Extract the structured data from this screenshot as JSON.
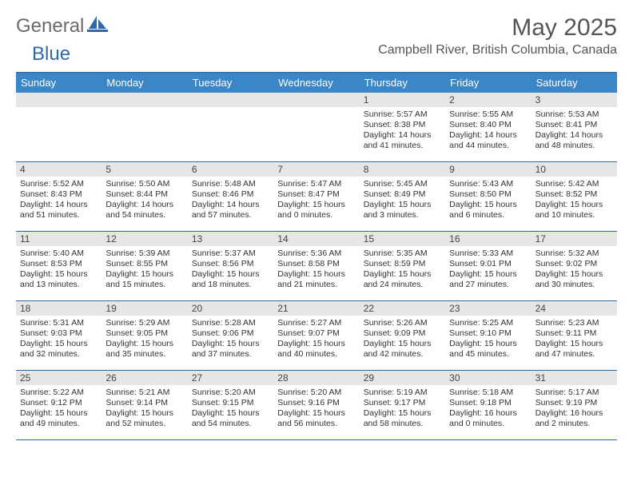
{
  "logo": {
    "text1": "General",
    "text2": "Blue"
  },
  "title": "May 2025",
  "subtitle": "Campbell River, British Columbia, Canada",
  "colors": {
    "header_bg": "#3b86c7",
    "border": "#2e6aa8",
    "daynum_bg": "#e6e6e6",
    "text_dark": "#444444",
    "body_text": "#333333"
  },
  "dayHeaders": [
    "Sunday",
    "Monday",
    "Tuesday",
    "Wednesday",
    "Thursday",
    "Friday",
    "Saturday"
  ],
  "weeks": [
    [
      {
        "n": "",
        "sunrise": "",
        "sunset": "",
        "daylight": ""
      },
      {
        "n": "",
        "sunrise": "",
        "sunset": "",
        "daylight": ""
      },
      {
        "n": "",
        "sunrise": "",
        "sunset": "",
        "daylight": ""
      },
      {
        "n": "",
        "sunrise": "",
        "sunset": "",
        "daylight": ""
      },
      {
        "n": "1",
        "sunrise": "Sunrise: 5:57 AM",
        "sunset": "Sunset: 8:38 PM",
        "daylight": "Daylight: 14 hours and 41 minutes."
      },
      {
        "n": "2",
        "sunrise": "Sunrise: 5:55 AM",
        "sunset": "Sunset: 8:40 PM",
        "daylight": "Daylight: 14 hours and 44 minutes."
      },
      {
        "n": "3",
        "sunrise": "Sunrise: 5:53 AM",
        "sunset": "Sunset: 8:41 PM",
        "daylight": "Daylight: 14 hours and 48 minutes."
      }
    ],
    [
      {
        "n": "4",
        "sunrise": "Sunrise: 5:52 AM",
        "sunset": "Sunset: 8:43 PM",
        "daylight": "Daylight: 14 hours and 51 minutes."
      },
      {
        "n": "5",
        "sunrise": "Sunrise: 5:50 AM",
        "sunset": "Sunset: 8:44 PM",
        "daylight": "Daylight: 14 hours and 54 minutes."
      },
      {
        "n": "6",
        "sunrise": "Sunrise: 5:48 AM",
        "sunset": "Sunset: 8:46 PM",
        "daylight": "Daylight: 14 hours and 57 minutes."
      },
      {
        "n": "7",
        "sunrise": "Sunrise: 5:47 AM",
        "sunset": "Sunset: 8:47 PM",
        "daylight": "Daylight: 15 hours and 0 minutes."
      },
      {
        "n": "8",
        "sunrise": "Sunrise: 5:45 AM",
        "sunset": "Sunset: 8:49 PM",
        "daylight": "Daylight: 15 hours and 3 minutes."
      },
      {
        "n": "9",
        "sunrise": "Sunrise: 5:43 AM",
        "sunset": "Sunset: 8:50 PM",
        "daylight": "Daylight: 15 hours and 6 minutes."
      },
      {
        "n": "10",
        "sunrise": "Sunrise: 5:42 AM",
        "sunset": "Sunset: 8:52 PM",
        "daylight": "Daylight: 15 hours and 10 minutes."
      }
    ],
    [
      {
        "n": "11",
        "sunrise": "Sunrise: 5:40 AM",
        "sunset": "Sunset: 8:53 PM",
        "daylight": "Daylight: 15 hours and 13 minutes."
      },
      {
        "n": "12",
        "sunrise": "Sunrise: 5:39 AM",
        "sunset": "Sunset: 8:55 PM",
        "daylight": "Daylight: 15 hours and 15 minutes."
      },
      {
        "n": "13",
        "sunrise": "Sunrise: 5:37 AM",
        "sunset": "Sunset: 8:56 PM",
        "daylight": "Daylight: 15 hours and 18 minutes."
      },
      {
        "n": "14",
        "sunrise": "Sunrise: 5:36 AM",
        "sunset": "Sunset: 8:58 PM",
        "daylight": "Daylight: 15 hours and 21 minutes."
      },
      {
        "n": "15",
        "sunrise": "Sunrise: 5:35 AM",
        "sunset": "Sunset: 8:59 PM",
        "daylight": "Daylight: 15 hours and 24 minutes."
      },
      {
        "n": "16",
        "sunrise": "Sunrise: 5:33 AM",
        "sunset": "Sunset: 9:01 PM",
        "daylight": "Daylight: 15 hours and 27 minutes."
      },
      {
        "n": "17",
        "sunrise": "Sunrise: 5:32 AM",
        "sunset": "Sunset: 9:02 PM",
        "daylight": "Daylight: 15 hours and 30 minutes."
      }
    ],
    [
      {
        "n": "18",
        "sunrise": "Sunrise: 5:31 AM",
        "sunset": "Sunset: 9:03 PM",
        "daylight": "Daylight: 15 hours and 32 minutes."
      },
      {
        "n": "19",
        "sunrise": "Sunrise: 5:29 AM",
        "sunset": "Sunset: 9:05 PM",
        "daylight": "Daylight: 15 hours and 35 minutes."
      },
      {
        "n": "20",
        "sunrise": "Sunrise: 5:28 AM",
        "sunset": "Sunset: 9:06 PM",
        "daylight": "Daylight: 15 hours and 37 minutes."
      },
      {
        "n": "21",
        "sunrise": "Sunrise: 5:27 AM",
        "sunset": "Sunset: 9:07 PM",
        "daylight": "Daylight: 15 hours and 40 minutes."
      },
      {
        "n": "22",
        "sunrise": "Sunrise: 5:26 AM",
        "sunset": "Sunset: 9:09 PM",
        "daylight": "Daylight: 15 hours and 42 minutes."
      },
      {
        "n": "23",
        "sunrise": "Sunrise: 5:25 AM",
        "sunset": "Sunset: 9:10 PM",
        "daylight": "Daylight: 15 hours and 45 minutes."
      },
      {
        "n": "24",
        "sunrise": "Sunrise: 5:23 AM",
        "sunset": "Sunset: 9:11 PM",
        "daylight": "Daylight: 15 hours and 47 minutes."
      }
    ],
    [
      {
        "n": "25",
        "sunrise": "Sunrise: 5:22 AM",
        "sunset": "Sunset: 9:12 PM",
        "daylight": "Daylight: 15 hours and 49 minutes."
      },
      {
        "n": "26",
        "sunrise": "Sunrise: 5:21 AM",
        "sunset": "Sunset: 9:14 PM",
        "daylight": "Daylight: 15 hours and 52 minutes."
      },
      {
        "n": "27",
        "sunrise": "Sunrise: 5:20 AM",
        "sunset": "Sunset: 9:15 PM",
        "daylight": "Daylight: 15 hours and 54 minutes."
      },
      {
        "n": "28",
        "sunrise": "Sunrise: 5:20 AM",
        "sunset": "Sunset: 9:16 PM",
        "daylight": "Daylight: 15 hours and 56 minutes."
      },
      {
        "n": "29",
        "sunrise": "Sunrise: 5:19 AM",
        "sunset": "Sunset: 9:17 PM",
        "daylight": "Daylight: 15 hours and 58 minutes."
      },
      {
        "n": "30",
        "sunrise": "Sunrise: 5:18 AM",
        "sunset": "Sunset: 9:18 PM",
        "daylight": "Daylight: 16 hours and 0 minutes."
      },
      {
        "n": "31",
        "sunrise": "Sunrise: 5:17 AM",
        "sunset": "Sunset: 9:19 PM",
        "daylight": "Daylight: 16 hours and 2 minutes."
      }
    ]
  ]
}
